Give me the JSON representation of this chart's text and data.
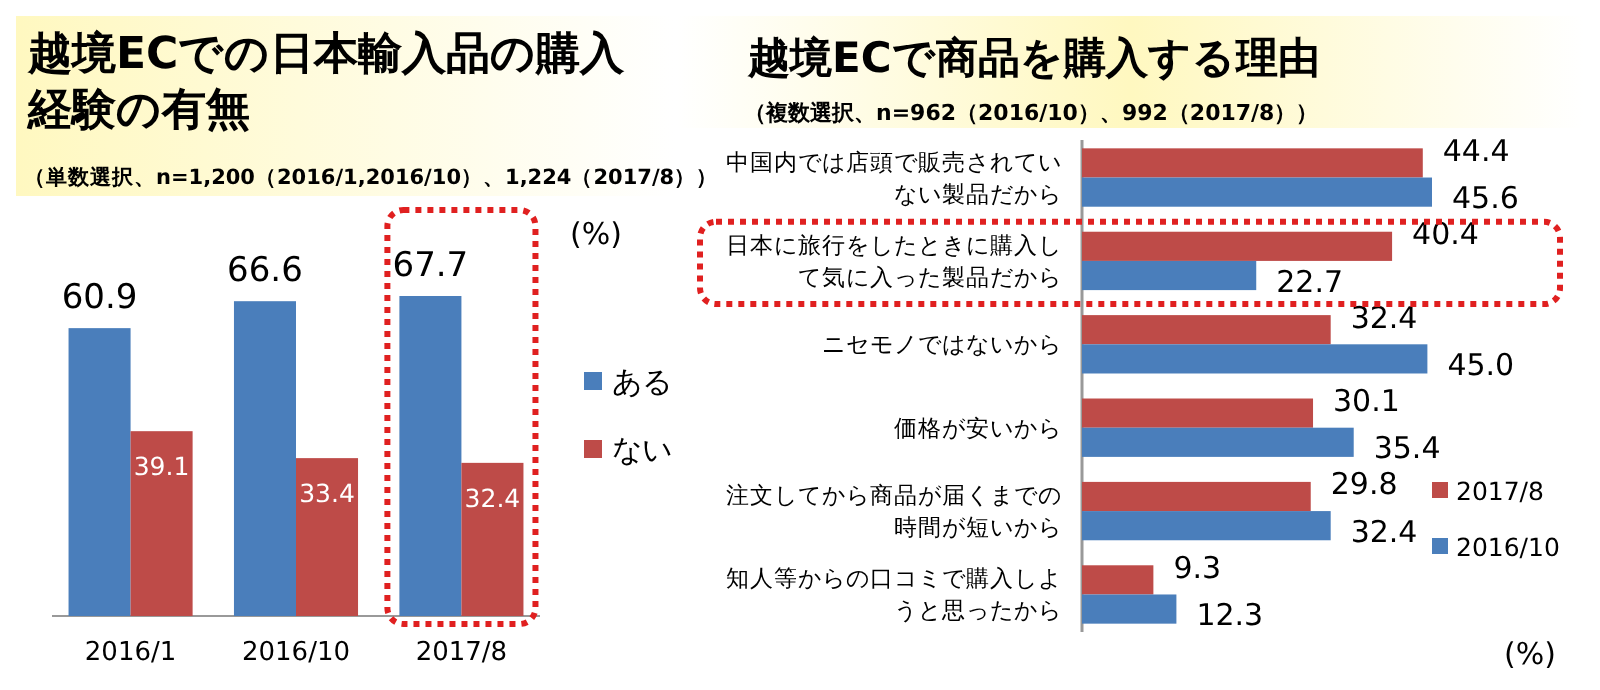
{
  "chart_data": [
    {
      "type": "bar",
      "title": "越境ECでの日本輸入品の購入経験の有無",
      "subtitle": "（単数選択、n=1,200（2016/1,2016/10）、1,224（2017/8））",
      "categories": [
        "2016/1",
        "2016/10",
        "2017/8"
      ],
      "series": [
        {
          "name": "ある",
          "color": "#4a7ebb",
          "values": [
            60.9,
            66.6,
            67.7
          ]
        },
        {
          "name": "ない",
          "color": "#be4b48",
          "values": [
            39.1,
            33.4,
            32.4
          ]
        }
      ],
      "data_labels": true,
      "legend": "right",
      "annotations": [
        "(%)"
      ]
    },
    {
      "type": "bar",
      "orientation": "horizontal",
      "title": "越境ECで商品を購入する理由",
      "subtitle": "（複数選択、n=962（2016/10）、992（2017/8））",
      "categories": [
        "中国内では店頭で販売されていない製品だから",
        "日本に旅行をしたときに購入して気に入った製品だから",
        "ニセモノではないから",
        "価格が安いから",
        "注文してから商品が届くまでの時間が短いから",
        "知人等からの口コミで購入しようと思ったから"
      ],
      "series": [
        {
          "name": "2017/8",
          "color": "#be4b48",
          "values": [
            44.4,
            40.4,
            32.4,
            30.1,
            29.8,
            9.3
          ],
          "value_labels": [
            "44.4",
            "40.4",
            "32.4",
            "30.1",
            "29.8",
            "9.3"
          ]
        },
        {
          "name": "2016/10",
          "color": "#4a7ebb",
          "values": [
            45.6,
            22.7,
            45.0,
            35.4,
            32.4,
            12.3
          ],
          "value_labels": [
            "45.6",
            "22.7",
            "45.0",
            "35.4",
            "32.4",
            "12.3"
          ]
        }
      ],
      "legend": "bottom right",
      "annotations": [
        "(%)"
      ]
    }
  ]
}
